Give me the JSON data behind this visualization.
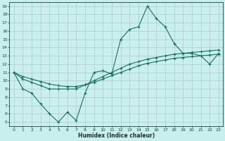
{
  "xlabel": "Humidex (Indice chaleur)",
  "bg_color": "#c8eeee",
  "grid_color": "#b0c8c8",
  "line_color": "#1a7060",
  "xlim": [
    -0.5,
    23.5
  ],
  "ylim": [
    4.5,
    19.5
  ],
  "xticks": [
    0,
    1,
    2,
    3,
    4,
    5,
    6,
    7,
    8,
    9,
    10,
    11,
    12,
    13,
    14,
    15,
    16,
    17,
    18,
    19,
    20,
    21,
    22,
    23
  ],
  "yticks": [
    5,
    6,
    7,
    8,
    9,
    10,
    11,
    12,
    13,
    14,
    15,
    16,
    17,
    18,
    19
  ],
  "line1_x": [
    0,
    1,
    2,
    3,
    4,
    5,
    6,
    7,
    8,
    9,
    10,
    11,
    12,
    13,
    14,
    15,
    16,
    17,
    18,
    19,
    20,
    21,
    22,
    23
  ],
  "line1_y": [
    11.0,
    9.0,
    8.5,
    7.2,
    6.0,
    5.0,
    6.2,
    5.2,
    8.5,
    11.0,
    11.2,
    10.8,
    15.0,
    16.2,
    16.5,
    19.0,
    17.5,
    16.5,
    14.5,
    13.3,
    13.3,
    13.0,
    12.0,
    13.3
  ],
  "line2_x": [
    0,
    1,
    2,
    3,
    4,
    5,
    6,
    7,
    8,
    9,
    10,
    11,
    12,
    13,
    14,
    15,
    16,
    17,
    18,
    19,
    20,
    21,
    22,
    23
  ],
  "line2_y": [
    11.0,
    10.2,
    9.8,
    9.4,
    9.0,
    9.0,
    9.0,
    9.0,
    9.5,
    10.0,
    10.5,
    11.0,
    11.5,
    12.0,
    12.3,
    12.6,
    12.8,
    13.0,
    13.2,
    13.3,
    13.4,
    13.5,
    13.6,
    13.7
  ],
  "line3_x": [
    0,
    1,
    2,
    3,
    4,
    5,
    6,
    7,
    8,
    9,
    10,
    11,
    12,
    13,
    14,
    15,
    16,
    17,
    18,
    19,
    20,
    21,
    22,
    23
  ],
  "line3_y": [
    11.0,
    10.5,
    10.2,
    9.9,
    9.6,
    9.4,
    9.3,
    9.3,
    9.5,
    9.8,
    10.2,
    10.6,
    11.0,
    11.4,
    11.8,
    12.1,
    12.3,
    12.5,
    12.7,
    12.8,
    12.9,
    13.0,
    13.1,
    13.2
  ]
}
